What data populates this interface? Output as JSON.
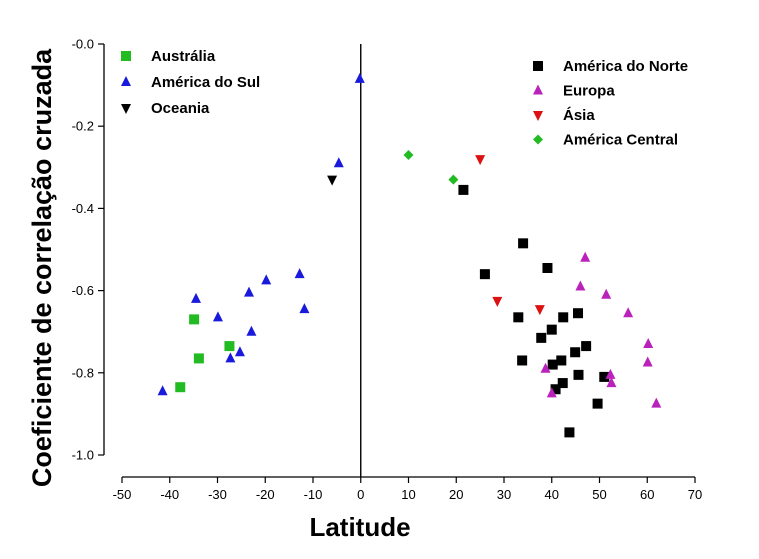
{
  "chart_data": {
    "type": "scatter",
    "xlabel": "Latitude",
    "ylabel": "Coeficiente de correlação cruzada",
    "xlim": [
      -50,
      70
    ],
    "ylim": [
      -1.0,
      0.0
    ],
    "x_ticks": [
      -50,
      -40,
      -30,
      -20,
      -10,
      0,
      10,
      20,
      30,
      40,
      50,
      60,
      70
    ],
    "y_ticks": [
      0.0,
      -0.2,
      -0.4,
      -0.6,
      -0.8,
      -1.0
    ],
    "y_tick_labels": [
      "-0.0",
      "-0.2",
      "-0.4",
      "-0.6",
      "-0.8",
      "-1.0"
    ],
    "vertical_reference_line_x": 0,
    "grid": false,
    "legends": [
      {
        "placement": "top-left",
        "entries": [
          "Austrália",
          "América do Sul",
          "Oceania"
        ]
      },
      {
        "placement": "top-right",
        "entries": [
          "América do Norte",
          "Europa",
          "Ásia",
          "América Central"
        ]
      }
    ],
    "series": [
      {
        "name": "Austrália",
        "marker": "square",
        "color": "#22bb22",
        "points": [
          [
            -34.9,
            -0.67
          ],
          [
            -33.9,
            -0.765
          ],
          [
            -27.5,
            -0.735
          ],
          [
            -37.8,
            -0.835
          ]
        ]
      },
      {
        "name": "América do Sul",
        "marker": "triangle-up",
        "color": "#1a1adc",
        "points": [
          [
            -0.2,
            -0.085
          ],
          [
            -4.6,
            -0.29
          ],
          [
            -12.8,
            -0.56
          ],
          [
            -11.8,
            -0.645
          ],
          [
            -19.8,
            -0.575
          ],
          [
            -23.4,
            -0.605
          ],
          [
            -34.5,
            -0.62
          ],
          [
            -29.9,
            -0.665
          ],
          [
            -22.9,
            -0.7
          ],
          [
            -25.3,
            -0.75
          ],
          [
            -27.3,
            -0.765
          ],
          [
            -41.5,
            -0.845
          ]
        ]
      },
      {
        "name": "Oceania",
        "marker": "triangle-down",
        "color": "#000000",
        "points": [
          [
            -6.0,
            -0.33
          ]
        ]
      },
      {
        "name": "América do Norte",
        "marker": "square",
        "color": "#000000",
        "points": [
          [
            21.5,
            -0.355
          ],
          [
            34.0,
            -0.485
          ],
          [
            26.0,
            -0.56
          ],
          [
            39.1,
            -0.545
          ],
          [
            33.0,
            -0.665
          ],
          [
            37.8,
            -0.715
          ],
          [
            40.0,
            -0.695
          ],
          [
            42.4,
            -0.665
          ],
          [
            45.5,
            -0.655
          ],
          [
            47.2,
            -0.735
          ],
          [
            44.9,
            -0.75
          ],
          [
            33.8,
            -0.77
          ],
          [
            42.0,
            -0.77
          ],
          [
            40.2,
            -0.78
          ],
          [
            45.6,
            -0.805
          ],
          [
            51.0,
            -0.81
          ],
          [
            42.3,
            -0.825
          ],
          [
            40.8,
            -0.84
          ],
          [
            49.6,
            -0.875
          ],
          [
            43.7,
            -0.945
          ]
        ]
      },
      {
        "name": "Europa",
        "marker": "triangle-up",
        "color": "#bb22bb",
        "points": [
          [
            47.0,
            -0.52
          ],
          [
            46.0,
            -0.59
          ],
          [
            51.4,
            -0.61
          ],
          [
            56.0,
            -0.655
          ],
          [
            60.2,
            -0.73
          ],
          [
            60.1,
            -0.775
          ],
          [
            38.7,
            -0.79
          ],
          [
            52.3,
            -0.805
          ],
          [
            52.5,
            -0.825
          ],
          [
            40.0,
            -0.85
          ],
          [
            61.9,
            -0.875
          ]
        ]
      },
      {
        "name": "Ásia",
        "marker": "triangle-down",
        "color": "#dd1111",
        "points": [
          [
            25.0,
            -0.28
          ],
          [
            28.6,
            -0.625
          ],
          [
            37.5,
            -0.645
          ]
        ]
      },
      {
        "name": "América Central",
        "marker": "diamond",
        "color": "#22bb22",
        "points": [
          [
            10.0,
            -0.27
          ],
          [
            19.4,
            -0.33
          ]
        ]
      }
    ]
  }
}
